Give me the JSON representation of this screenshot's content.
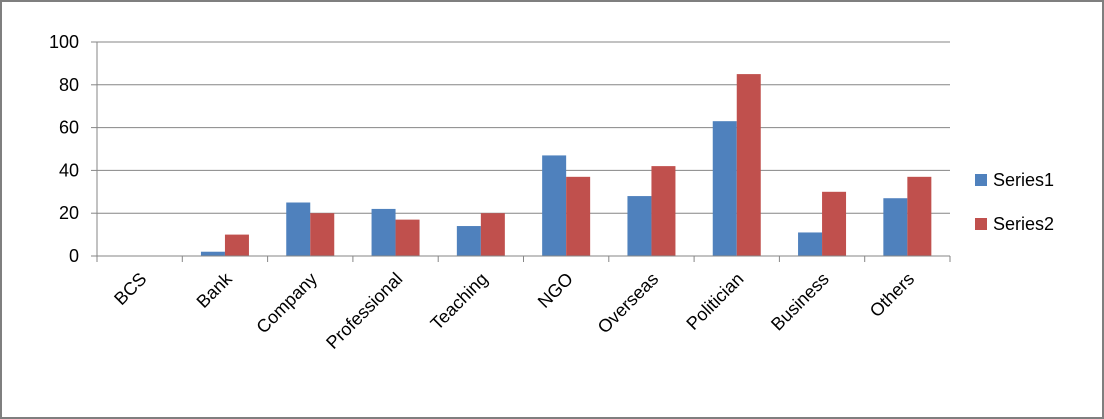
{
  "chart_data": {
    "type": "bar",
    "title": "",
    "xlabel": "",
    "ylabel": "",
    "categories": [
      "BCS",
      "Bank",
      "Company",
      "Professional",
      "Teaching",
      "NGO",
      "Overseas",
      "Politician",
      "Business",
      "Others"
    ],
    "series": [
      {
        "name": "Series1",
        "color": "#4f81bd",
        "values": [
          0,
          2,
          25,
          22,
          14,
          47,
          28,
          63,
          11,
          27
        ]
      },
      {
        "name": "Series2",
        "color": "#c0504d",
        "values": [
          0,
          10,
          20,
          17,
          20,
          37,
          42,
          85,
          30,
          37
        ]
      }
    ],
    "ylim": [
      0,
      100
    ],
    "yticks": [
      "0",
      "20",
      "40",
      "60",
      "80",
      "100"
    ],
    "grid": true,
    "legend_position": "right"
  }
}
